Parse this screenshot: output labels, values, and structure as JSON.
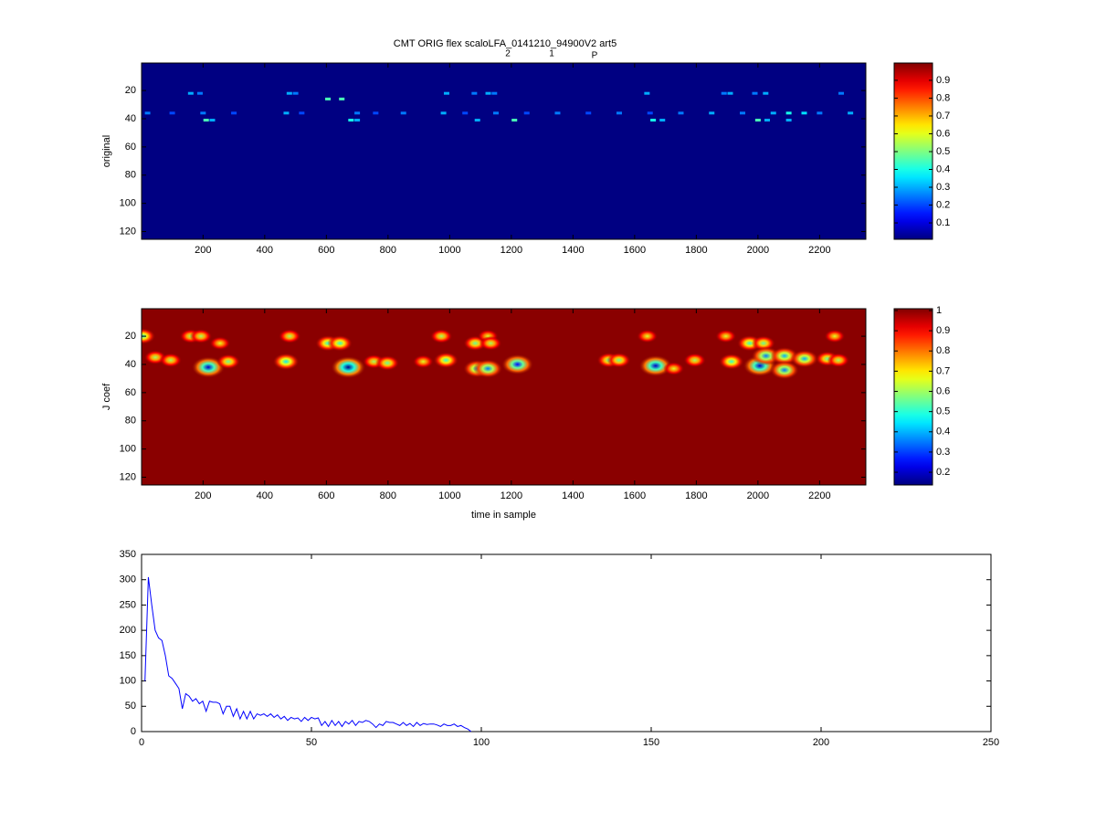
{
  "chart_data": [
    {
      "type": "heatmap",
      "title": "CMT ORIG flex scaloLFA_0141210_94900V2 art5",
      "title_subscripts": [
        "2",
        "1",
        "P"
      ],
      "ylabel": "original",
      "xlim": [
        0.5,
        2350
      ],
      "ylim": [
        0.5,
        125.5
      ],
      "y_reversed": true,
      "xticks": [
        200,
        400,
        600,
        800,
        1000,
        1200,
        1400,
        1600,
        1800,
        2000,
        2200
      ],
      "yticks": [
        20,
        40,
        60,
        80,
        100,
        120
      ],
      "colormap": "jet",
      "background": 0.01,
      "clim": [
        0.008,
        0.997
      ],
      "cticks": [
        0.1,
        0.2,
        0.3,
        0.4,
        0.5,
        0.6,
        0.7,
        0.8,
        0.9
      ],
      "spots": [
        [
          160,
          22,
          0.3
        ],
        [
          190,
          22,
          0.25
        ],
        [
          480,
          22,
          0.3
        ],
        [
          500,
          22,
          0.25
        ],
        [
          605,
          26,
          0.45
        ],
        [
          650,
          26,
          0.45
        ],
        [
          990,
          22,
          0.3
        ],
        [
          1080,
          22,
          0.25
        ],
        [
          1125,
          22,
          0.3
        ],
        [
          1145,
          22,
          0.25
        ],
        [
          1640,
          22,
          0.3
        ],
        [
          1890,
          22,
          0.25
        ],
        [
          1910,
          22,
          0.3
        ],
        [
          1990,
          22,
          0.25
        ],
        [
          2025,
          22,
          0.3
        ],
        [
          2270,
          22,
          0.25
        ],
        [
          20,
          36,
          0.25
        ],
        [
          100,
          36,
          0.2
        ],
        [
          200,
          36,
          0.25
        ],
        [
          300,
          36,
          0.2
        ],
        [
          470,
          36,
          0.3
        ],
        [
          520,
          36,
          0.2
        ],
        [
          700,
          36,
          0.25
        ],
        [
          760,
          36,
          0.2
        ],
        [
          850,
          36,
          0.25
        ],
        [
          980,
          36,
          0.3
        ],
        [
          1050,
          36,
          0.2
        ],
        [
          1150,
          36,
          0.25
        ],
        [
          1250,
          36,
          0.2
        ],
        [
          1350,
          36,
          0.25
        ],
        [
          1450,
          36,
          0.2
        ],
        [
          1550,
          36,
          0.25
        ],
        [
          1650,
          36,
          0.2
        ],
        [
          1750,
          36,
          0.25
        ],
        [
          1850,
          36,
          0.3
        ],
        [
          1950,
          36,
          0.25
        ],
        [
          2050,
          36,
          0.3
        ],
        [
          2100,
          36,
          0.4
        ],
        [
          2150,
          36,
          0.35
        ],
        [
          2200,
          36,
          0.25
        ],
        [
          2300,
          36,
          0.3
        ],
        [
          210,
          41,
          0.45
        ],
        [
          230,
          41,
          0.3
        ],
        [
          680,
          41,
          0.4
        ],
        [
          700,
          41,
          0.3
        ],
        [
          1090,
          41,
          0.3
        ],
        [
          1210,
          41,
          0.45
        ],
        [
          1660,
          41,
          0.4
        ],
        [
          1690,
          41,
          0.3
        ],
        [
          2000,
          41,
          0.45
        ],
        [
          2030,
          41,
          0.3
        ],
        [
          2100,
          41,
          0.3
        ]
      ]
    },
    {
      "type": "heatmap",
      "ylabel": "J coef",
      "xlabel": "time in sample",
      "xlim": [
        0.5,
        2350
      ],
      "ylim": [
        0.5,
        125.5
      ],
      "y_reversed": true,
      "xticks": [
        200,
        400,
        600,
        800,
        1000,
        1200,
        1400,
        1600,
        1800,
        2000,
        2200
      ],
      "yticks": [
        20,
        40,
        60,
        80,
        100,
        120
      ],
      "colormap": "jet",
      "background": 1,
      "clim": [
        0.137,
        1.009
      ],
      "cticks": [
        0.2,
        0.3,
        0.4,
        0.5,
        0.6,
        0.7,
        0.8,
        0.9,
        1
      ],
      "spots": [
        [
          5,
          20,
          0.5
        ],
        [
          45,
          35,
          0.6
        ],
        [
          95,
          37,
          0.6
        ],
        [
          160,
          20,
          0.6
        ],
        [
          193,
          20,
          0.6
        ],
        [
          217,
          42,
          0.2
        ],
        [
          255,
          25,
          0.65
        ],
        [
          282,
          38,
          0.55
        ],
        [
          469,
          38,
          0.45
        ],
        [
          481,
          20,
          0.6
        ],
        [
          605,
          25,
          0.5
        ],
        [
          644,
          25,
          0.5
        ],
        [
          671,
          42,
          0.15
        ],
        [
          754,
          38,
          0.6
        ],
        [
          798,
          39,
          0.55
        ],
        [
          914,
          38,
          0.65
        ],
        [
          973,
          20,
          0.6
        ],
        [
          988,
          37,
          0.5
        ],
        [
          1083,
          25,
          0.55
        ],
        [
          1089,
          43,
          0.4
        ],
        [
          1124,
          20,
          0.65
        ],
        [
          1124,
          43,
          0.35
        ],
        [
          1133,
          25,
          0.6
        ],
        [
          1220,
          40,
          0.25
        ],
        [
          1516,
          37,
          0.55
        ],
        [
          1549,
          37,
          0.55
        ],
        [
          1641,
          20,
          0.65
        ],
        [
          1668,
          41,
          0.2
        ],
        [
          1727,
          43,
          0.65
        ],
        [
          1795,
          37,
          0.6
        ],
        [
          1896,
          20,
          0.65
        ],
        [
          1914,
          38,
          0.5
        ],
        [
          1973,
          25,
          0.5
        ],
        [
          2018,
          25,
          0.55
        ],
        [
          2006,
          41,
          0.2
        ],
        [
          2026,
          34,
          0.35
        ],
        [
          2086,
          34,
          0.4
        ],
        [
          2086,
          44,
          0.35
        ],
        [
          2151,
          36,
          0.4
        ],
        [
          2225,
          36,
          0.55
        ],
        [
          2249,
          20,
          0.65
        ],
        [
          2261,
          37,
          0.6
        ]
      ]
    },
    {
      "type": "line",
      "x": [
        1,
        2,
        3,
        4,
        5,
        6,
        7,
        8,
        9,
        10,
        11,
        12,
        13,
        14,
        15,
        16,
        17,
        18,
        19,
        20,
        21,
        22,
        23,
        24,
        25,
        26,
        27,
        28,
        29,
        30,
        31,
        32,
        33,
        34,
        35,
        36,
        37,
        38,
        39,
        40,
        41,
        42,
        43,
        44,
        45,
        46,
        47,
        48,
        49,
        50,
        51,
        52,
        53,
        54,
        55,
        56,
        57,
        58,
        59,
        60,
        61,
        62,
        63,
        64,
        65,
        66,
        67,
        68,
        69,
        70,
        71,
        72,
        73,
        74,
        75,
        76,
        77,
        78,
        79,
        80,
        81,
        82,
        83,
        84,
        85,
        86,
        87,
        88,
        89,
        90,
        91,
        92,
        93,
        94,
        95,
        96,
        97
      ],
      "series": [
        {
          "color": "#0000ff",
          "values": [
            100,
            305,
            250,
            200,
            185,
            180,
            150,
            110,
            105,
            95,
            85,
            45,
            75,
            70,
            60,
            65,
            55,
            60,
            40,
            60,
            58,
            58,
            55,
            35,
            50,
            50,
            30,
            45,
            25,
            40,
            25,
            40,
            25,
            35,
            32,
            35,
            30,
            35,
            28,
            33,
            25,
            30,
            22,
            28,
            25,
            27,
            20,
            28,
            22,
            28,
            25,
            27,
            12,
            20,
            10,
            22,
            12,
            20,
            10,
            20,
            15,
            22,
            12,
            20,
            18,
            22,
            20,
            15,
            8,
            15,
            12,
            20,
            18,
            18,
            15,
            12,
            18,
            12,
            16,
            10,
            18,
            12,
            16,
            14,
            15,
            15,
            13,
            10,
            15,
            12,
            12,
            15,
            10,
            12,
            8,
            5,
            0
          ]
        }
      ],
      "xlim": [
        0,
        250
      ],
      "ylim": [
        0,
        350
      ],
      "xticks": [
        0,
        50,
        100,
        150,
        200,
        250
      ],
      "yticks": [
        0,
        50,
        100,
        150,
        200,
        250,
        300,
        350
      ]
    }
  ]
}
